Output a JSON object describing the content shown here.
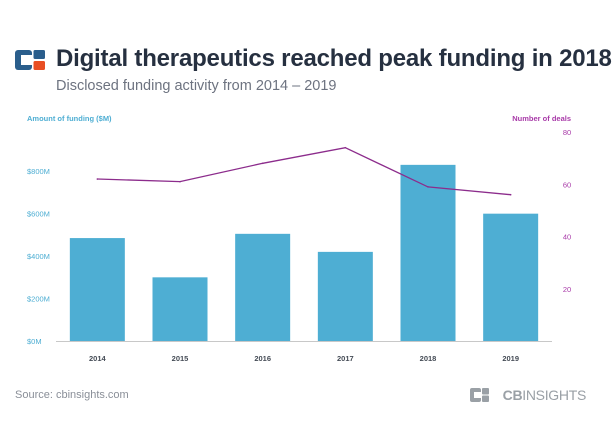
{
  "header": {
    "title": "Digital therapeutics reached peak funding in 2018",
    "subtitle": "Disclosed funding activity from 2014 – 2019",
    "logo_icon": "cb-insights-logo-icon",
    "colors": {
      "logo_blue": "#2a5e8c",
      "logo_orange": "#e84e23",
      "title": "#263040"
    }
  },
  "footer": {
    "source": "Source: cbinsights.com",
    "brand_cb": "CB",
    "brand_rest": "INSIGHTS"
  },
  "chart_data": {
    "type": "bar",
    "categories": [
      "2014",
      "2015",
      "2016",
      "2017",
      "2018",
      "2019"
    ],
    "series": [
      {
        "values": [
          485,
          300,
          505,
          420,
          830,
          600
        ],
        "chart_type": "bar",
        "axis": "left",
        "color": "#4eaed3"
      },
      {
        "values": [
          62,
          61,
          68,
          74,
          59,
          56
        ],
        "chart_type": "line",
        "axis": "right",
        "color": "#8c2c8c"
      }
    ],
    "y_left": {
      "label": "Amount of funding ($M)",
      "min": 0,
      "max": 900,
      "ticks": [
        0,
        200,
        400,
        600,
        800
      ],
      "tick_labels": [
        "$0M",
        "$200M",
        "$400M",
        "$600M",
        "$800M"
      ],
      "color": "#4eaed3"
    },
    "y_right": {
      "label": "Number of deals",
      "min": 0,
      "max": 80,
      "ticks": [
        20,
        40,
        60,
        80
      ],
      "tick_labels": [
        "20",
        "40",
        "60",
        "80"
      ],
      "color": "#a83aa8"
    },
    "grid": false
  }
}
